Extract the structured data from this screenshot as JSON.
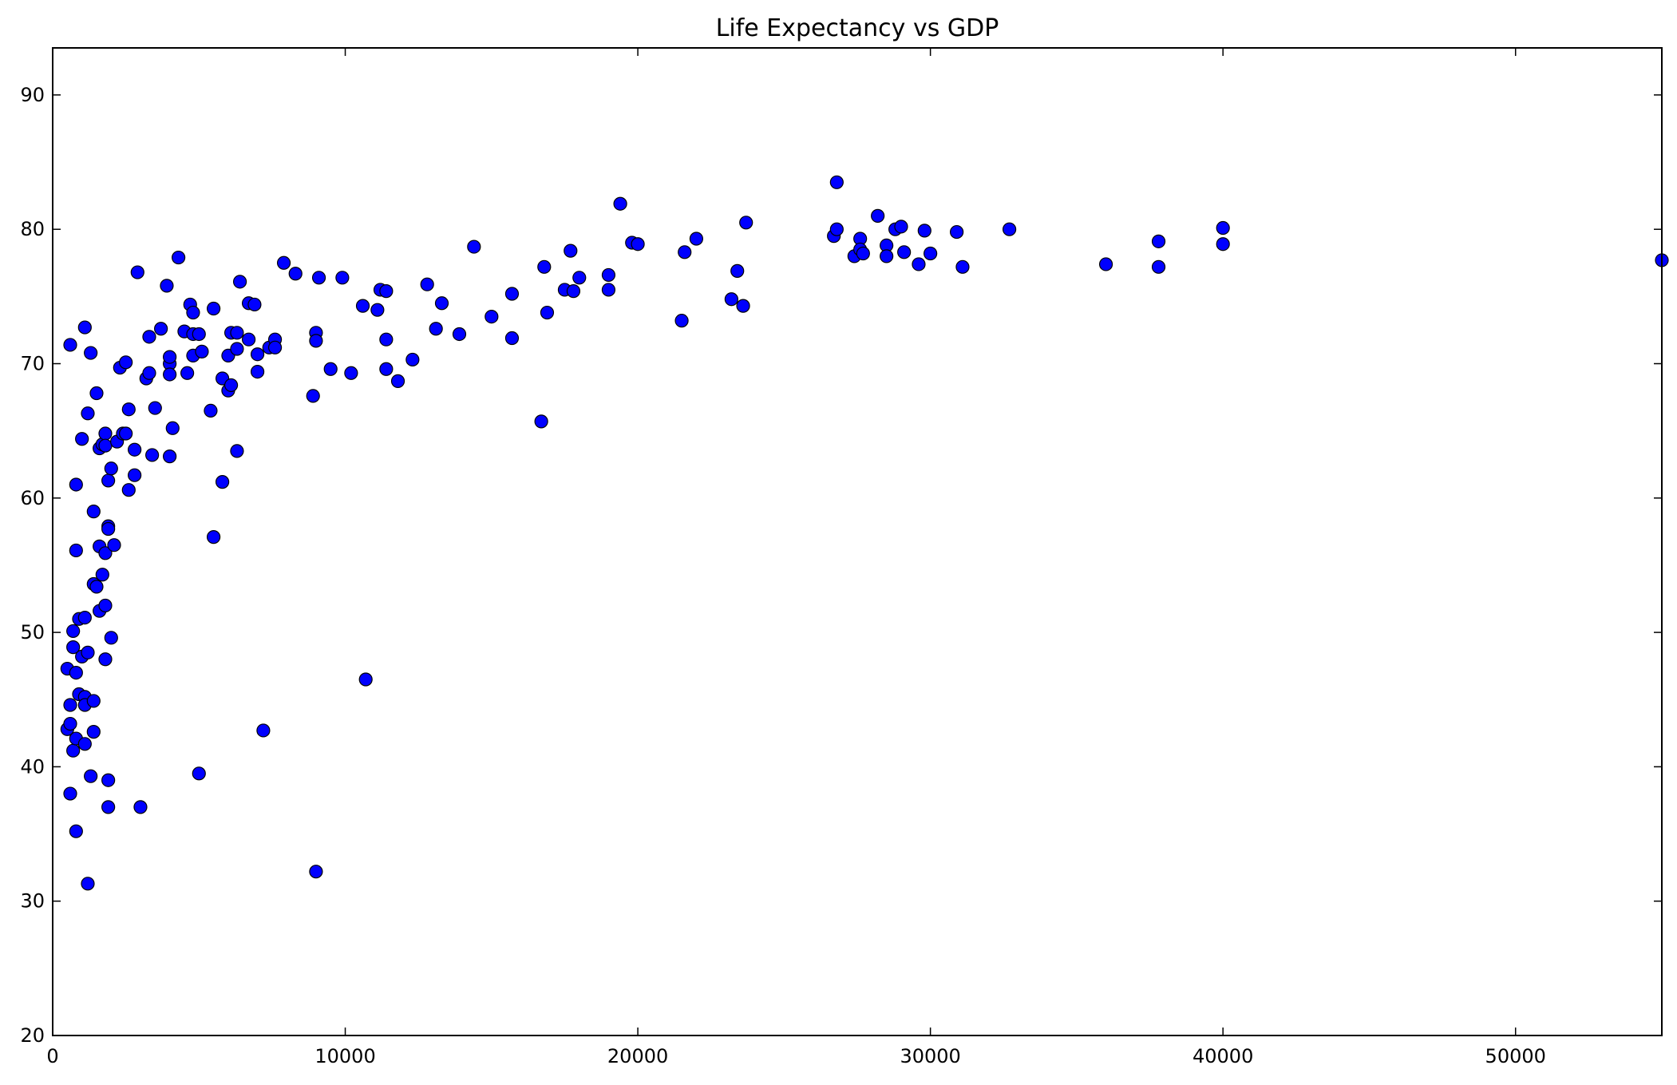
{
  "chart_data": {
    "type": "scatter",
    "title": "Life Expectancy vs GDP",
    "xlabel": "",
    "ylabel": "",
    "xlim": [
      0,
      55000
    ],
    "ylim": [
      20,
      93.5
    ],
    "xticks": [
      0,
      10000,
      20000,
      30000,
      40000,
      50000
    ],
    "yticks": [
      20,
      30,
      40,
      50,
      60,
      70,
      80,
      90
    ],
    "grid": false,
    "legend": "none",
    "marker_color": "#0000ff",
    "series": [
      {
        "values": [
          [
            500,
            42.8
          ],
          [
            500,
            47.3
          ],
          [
            600,
            43.2
          ],
          [
            600,
            44.6
          ],
          [
            600,
            38.0
          ],
          [
            600,
            71.4
          ],
          [
            700,
            50.1
          ],
          [
            700,
            48.9
          ],
          [
            700,
            41.2
          ],
          [
            800,
            42.1
          ],
          [
            800,
            47.0
          ],
          [
            800,
            35.2
          ],
          [
            800,
            56.1
          ],
          [
            800,
            61.0
          ],
          [
            900,
            45.4
          ],
          [
            900,
            51.0
          ],
          [
            1000,
            48.2
          ],
          [
            1000,
            64.4
          ],
          [
            1100,
            72.7
          ],
          [
            1100,
            45.2
          ],
          [
            1100,
            44.6
          ],
          [
            1100,
            41.7
          ],
          [
            1100,
            51.1
          ],
          [
            1200,
            48.5
          ],
          [
            1200,
            66.3
          ],
          [
            1200,
            31.3
          ],
          [
            1300,
            70.8
          ],
          [
            1300,
            39.3
          ],
          [
            1400,
            42.6
          ],
          [
            1400,
            44.9
          ],
          [
            1400,
            53.6
          ],
          [
            1400,
            59.0
          ],
          [
            1500,
            53.4
          ],
          [
            1500,
            67.8
          ],
          [
            1600,
            63.7
          ],
          [
            1600,
            56.4
          ],
          [
            1600,
            51.6
          ],
          [
            1700,
            54.3
          ],
          [
            1700,
            64.0
          ],
          [
            1800,
            64.8
          ],
          [
            1800,
            63.9
          ],
          [
            1800,
            55.9
          ],
          [
            1800,
            52.0
          ],
          [
            1800,
            48.0
          ],
          [
            1900,
            61.3
          ],
          [
            1900,
            57.9
          ],
          [
            1900,
            57.7
          ],
          [
            1900,
            39.0
          ],
          [
            1900,
            37.0
          ],
          [
            2000,
            62.2
          ],
          [
            2000,
            49.6
          ],
          [
            2100,
            56.5
          ],
          [
            2200,
            64.2
          ],
          [
            2300,
            69.7
          ],
          [
            2400,
            64.8
          ],
          [
            2500,
            64.8
          ],
          [
            2500,
            70.1
          ],
          [
            2600,
            66.6
          ],
          [
            2600,
            60.6
          ],
          [
            2800,
            63.6
          ],
          [
            2800,
            61.7
          ],
          [
            2900,
            76.8
          ],
          [
            3000,
            37.0
          ],
          [
            3200,
            68.9
          ],
          [
            3300,
            72.0
          ],
          [
            3300,
            69.3
          ],
          [
            3400,
            63.2
          ],
          [
            3500,
            66.7
          ],
          [
            3700,
            72.6
          ],
          [
            3900,
            75.8
          ],
          [
            4000,
            70.0
          ],
          [
            4000,
            70.5
          ],
          [
            4000,
            69.2
          ],
          [
            4000,
            63.1
          ],
          [
            4100,
            65.2
          ],
          [
            4300,
            77.9
          ],
          [
            4500,
            72.4
          ],
          [
            4600,
            69.3
          ],
          [
            4700,
            74.4
          ],
          [
            4800,
            73.8
          ],
          [
            4800,
            72.2
          ],
          [
            4800,
            70.6
          ],
          [
            5000,
            72.2
          ],
          [
            5000,
            39.5
          ],
          [
            5100,
            70.9
          ],
          [
            5400,
            66.5
          ],
          [
            5500,
            74.1
          ],
          [
            5500,
            57.1
          ],
          [
            5800,
            68.9
          ],
          [
            5800,
            61.2
          ],
          [
            6000,
            70.6
          ],
          [
            6000,
            68.0
          ],
          [
            6100,
            72.3
          ],
          [
            6100,
            68.4
          ],
          [
            6300,
            72.3
          ],
          [
            6300,
            71.1
          ],
          [
            6300,
            63.5
          ],
          [
            6400,
            76.1
          ],
          [
            6700,
            74.5
          ],
          [
            6700,
            71.8
          ],
          [
            6900,
            74.4
          ],
          [
            7000,
            70.7
          ],
          [
            7000,
            69.4
          ],
          [
            7200,
            42.7
          ],
          [
            7400,
            71.2
          ],
          [
            7600,
            71.8
          ],
          [
            7600,
            71.2
          ],
          [
            7900,
            77.5
          ],
          [
            8300,
            76.7
          ],
          [
            8900,
            67.6
          ],
          [
            9000,
            72.3
          ],
          [
            9000,
            71.7
          ],
          [
            9000,
            32.2
          ],
          [
            9100,
            76.4
          ],
          [
            9500,
            69.6
          ],
          [
            9900,
            76.4
          ],
          [
            10200,
            69.3
          ],
          [
            10600,
            74.3
          ],
          [
            10700,
            46.5
          ],
          [
            11100,
            74.0
          ],
          [
            11200,
            75.5
          ],
          [
            11400,
            75.4
          ],
          [
            11400,
            71.8
          ],
          [
            11400,
            69.6
          ],
          [
            11800,
            68.7
          ],
          [
            12300,
            70.3
          ],
          [
            12800,
            75.9
          ],
          [
            13100,
            72.6
          ],
          [
            13300,
            74.5
          ],
          [
            13900,
            72.2
          ],
          [
            14400,
            78.7
          ],
          [
            15000,
            73.5
          ],
          [
            15700,
            75.2
          ],
          [
            15700,
            71.9
          ],
          [
            16700,
            65.7
          ],
          [
            16800,
            77.2
          ],
          [
            16900,
            73.8
          ],
          [
            17500,
            75.5
          ],
          [
            17700,
            78.4
          ],
          [
            17800,
            75.4
          ],
          [
            18000,
            76.4
          ],
          [
            19000,
            76.6
          ],
          [
            19000,
            75.5
          ],
          [
            19400,
            81.9
          ],
          [
            19800,
            79.0
          ],
          [
            20000,
            78.9
          ],
          [
            21500,
            73.2
          ],
          [
            21600,
            78.3
          ],
          [
            22000,
            79.3
          ],
          [
            23200,
            74.8
          ],
          [
            23400,
            76.9
          ],
          [
            23600,
            74.3
          ],
          [
            23700,
            80.5
          ],
          [
            26700,
            79.5
          ],
          [
            26800,
            83.5
          ],
          [
            26800,
            80.0
          ],
          [
            27400,
            78.0
          ],
          [
            27600,
            79.3
          ],
          [
            27600,
            78.5
          ],
          [
            27700,
            78.2
          ],
          [
            28200,
            81.0
          ],
          [
            28500,
            78.8
          ],
          [
            28500,
            78.0
          ],
          [
            28800,
            80.0
          ],
          [
            29000,
            80.2
          ],
          [
            29100,
            78.3
          ],
          [
            29600,
            77.4
          ],
          [
            29800,
            79.9
          ],
          [
            30000,
            78.2
          ],
          [
            30900,
            79.8
          ],
          [
            31100,
            77.2
          ],
          [
            32700,
            80.0
          ],
          [
            36000,
            77.4
          ],
          [
            37800,
            79.1
          ],
          [
            37800,
            77.2
          ],
          [
            40000,
            80.1
          ],
          [
            40000,
            78.9
          ],
          [
            55000,
            77.7
          ]
        ]
      }
    ]
  }
}
